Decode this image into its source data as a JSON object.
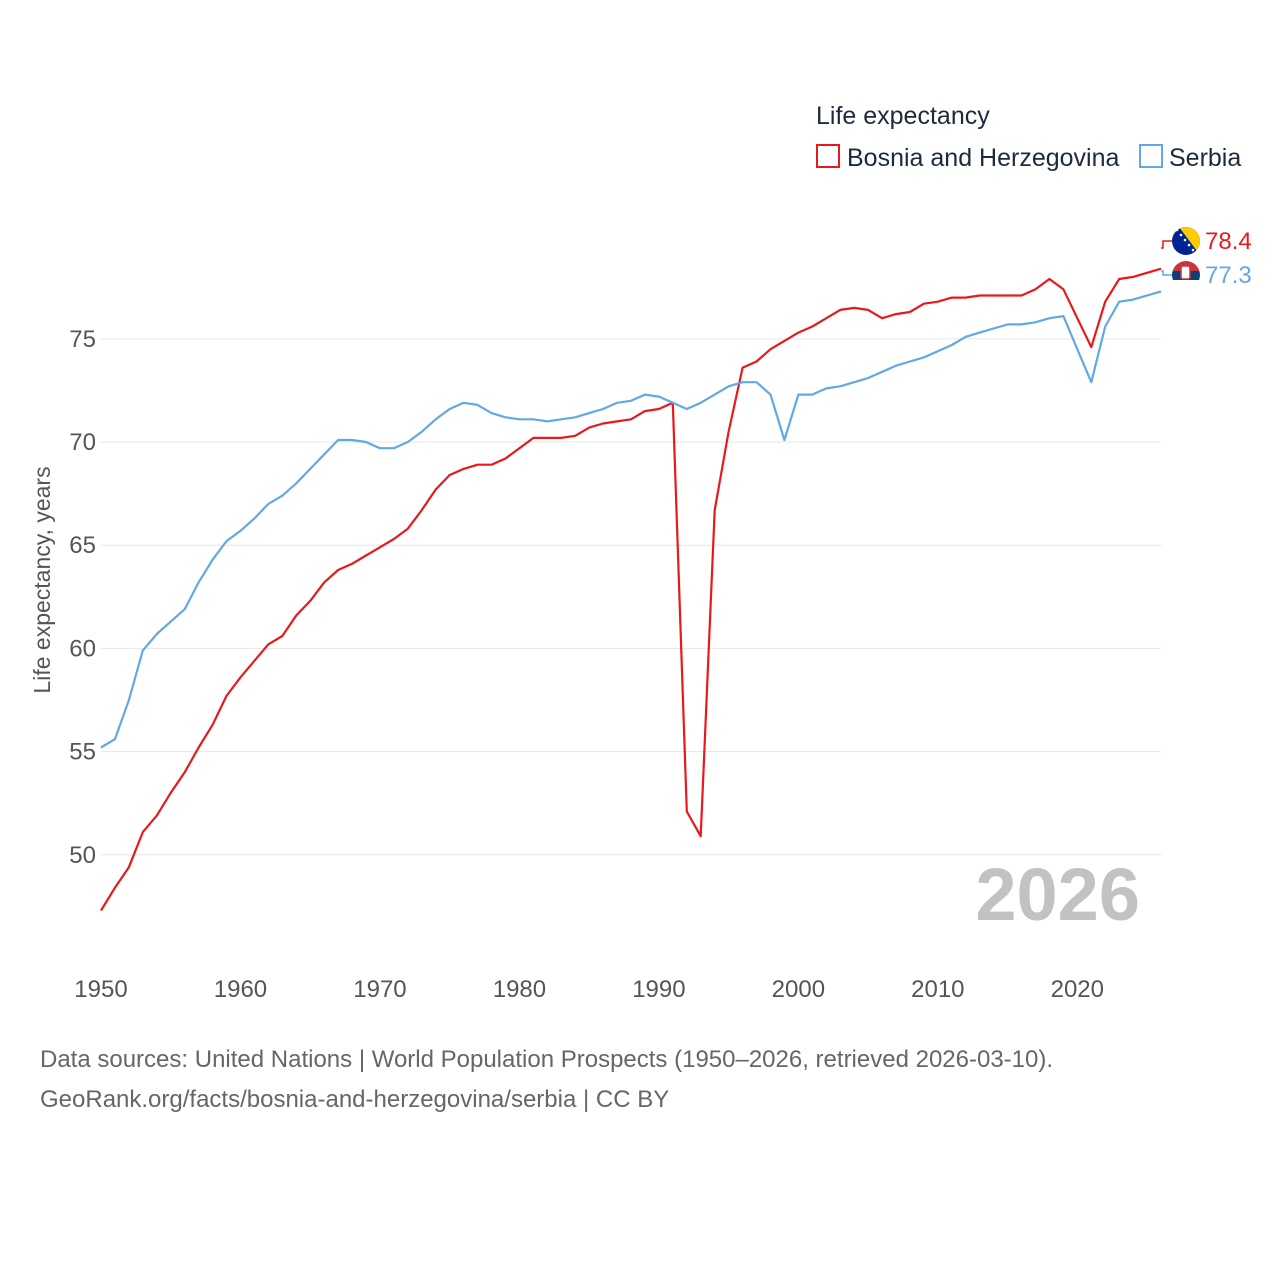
{
  "chart_data": {
    "type": "line",
    "legend_title": "Life expectancy",
    "ylabel": "Life expectancy, years",
    "xlim": [
      1950,
      2026
    ],
    "ylim": [
      45,
      81
    ],
    "yticks": [
      50,
      55,
      60,
      65,
      70,
      75
    ],
    "xticks": [
      1950,
      1960,
      1970,
      1980,
      1990,
      2000,
      2010,
      2020
    ],
    "year_label": "2026",
    "legend_position": "top-right",
    "years": [
      1950,
      1951,
      1952,
      1953,
      1954,
      1955,
      1956,
      1957,
      1958,
      1959,
      1960,
      1961,
      1962,
      1963,
      1964,
      1965,
      1966,
      1967,
      1968,
      1969,
      1970,
      1971,
      1972,
      1973,
      1974,
      1975,
      1976,
      1977,
      1978,
      1979,
      1980,
      1981,
      1982,
      1983,
      1984,
      1985,
      1986,
      1987,
      1988,
      1989,
      1990,
      1991,
      1992,
      1993,
      1994,
      1995,
      1996,
      1997,
      1998,
      1999,
      2000,
      2001,
      2002,
      2003,
      2004,
      2005,
      2006,
      2007,
      2008,
      2009,
      2010,
      2011,
      2012,
      2013,
      2014,
      2015,
      2016,
      2017,
      2018,
      2019,
      2020,
      2021,
      2022,
      2023,
      2024,
      2025,
      2026
    ],
    "series": [
      {
        "name": "Bosnia and Herzegovina",
        "color": "#e8191c",
        "end_label": "78.4",
        "flag": "bosnia-flag-icon",
        "values": [
          47.3,
          48.4,
          49.4,
          51.1,
          51.9,
          53.0,
          54.0,
          55.2,
          56.3,
          57.7,
          58.6,
          59.4,
          60.2,
          60.6,
          61.6,
          62.3,
          63.2,
          63.8,
          64.1,
          64.5,
          64.9,
          65.3,
          65.8,
          66.7,
          67.7,
          68.4,
          68.7,
          68.9,
          68.9,
          69.2,
          69.7,
          70.2,
          70.2,
          70.2,
          70.3,
          70.7,
          70.9,
          71.0,
          71.1,
          71.5,
          71.6,
          71.9,
          52.1,
          50.9,
          66.7,
          70.5,
          73.6,
          73.9,
          74.5,
          74.9,
          75.3,
          75.6,
          76.0,
          76.4,
          76.5,
          76.4,
          76.0,
          76.2,
          76.3,
          76.7,
          76.8,
          77.0,
          77.0,
          77.1,
          77.1,
          77.1,
          77.1,
          77.4,
          77.9,
          77.4,
          76.0,
          74.6,
          76.8,
          77.9,
          78.0,
          78.2,
          78.4
        ]
      },
      {
        "name": "Serbia",
        "color": "#62a8e5",
        "end_label": "77.3",
        "flag": "serbia-flag-icon",
        "values": [
          55.2,
          55.6,
          57.5,
          59.9,
          60.7,
          61.3,
          61.9,
          63.2,
          64.3,
          65.2,
          65.7,
          66.3,
          67.0,
          67.4,
          68.0,
          68.7,
          69.4,
          70.1,
          70.1,
          70.0,
          69.7,
          69.7,
          70.0,
          70.5,
          71.1,
          71.6,
          71.9,
          71.8,
          71.4,
          71.2,
          71.1,
          71.1,
          71.0,
          71.1,
          71.2,
          71.4,
          71.6,
          71.9,
          72.0,
          72.3,
          72.2,
          71.9,
          71.6,
          71.9,
          72.3,
          72.7,
          72.9,
          72.9,
          72.3,
          70.1,
          72.3,
          72.3,
          72.6,
          72.7,
          72.9,
          73.1,
          73.4,
          73.7,
          73.9,
          74.1,
          74.4,
          74.7,
          75.1,
          75.3,
          75.5,
          75.7,
          75.7,
          75.8,
          76.0,
          76.1,
          74.5,
          72.9,
          75.6,
          76.8,
          76.9,
          77.1,
          77.3
        ]
      }
    ]
  },
  "footer": {
    "line1": "Data sources: United Nations | World Population Prospects (1950–2026, retrieved 2026-03-10).",
    "line2": "GeoRank.org/facts/bosnia-and-herzegovina/serbia | CC BY"
  }
}
